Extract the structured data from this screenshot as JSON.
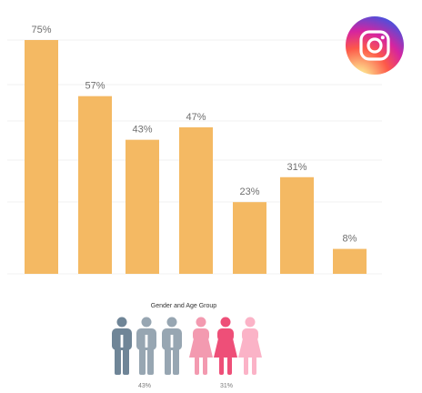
{
  "chart_data": {
    "type": "bar",
    "values": [
      75,
      57,
      43,
      47,
      23,
      31,
      8
    ],
    "value_labels": [
      "75%",
      "57%",
      "43%",
      "47%",
      "23%",
      "31%",
      "8%"
    ],
    "ylim": [
      0,
      80
    ],
    "grid": true,
    "bar_color": "#f4b963",
    "grid_color": "#f0f0f0",
    "label_color": "#6f6f6f"
  },
  "logo": {
    "icon": "instagram-icon"
  },
  "legend": {
    "title": "Gender and Age Group",
    "male_percent": "43%",
    "female_percent": "31%",
    "male_figure_colors": [
      "#6f8597",
      "#97a6b2",
      "#97a6b2"
    ],
    "female_figure_colors": [
      "#f39ab0",
      "#ee4f78",
      "#fbb3c7"
    ]
  }
}
